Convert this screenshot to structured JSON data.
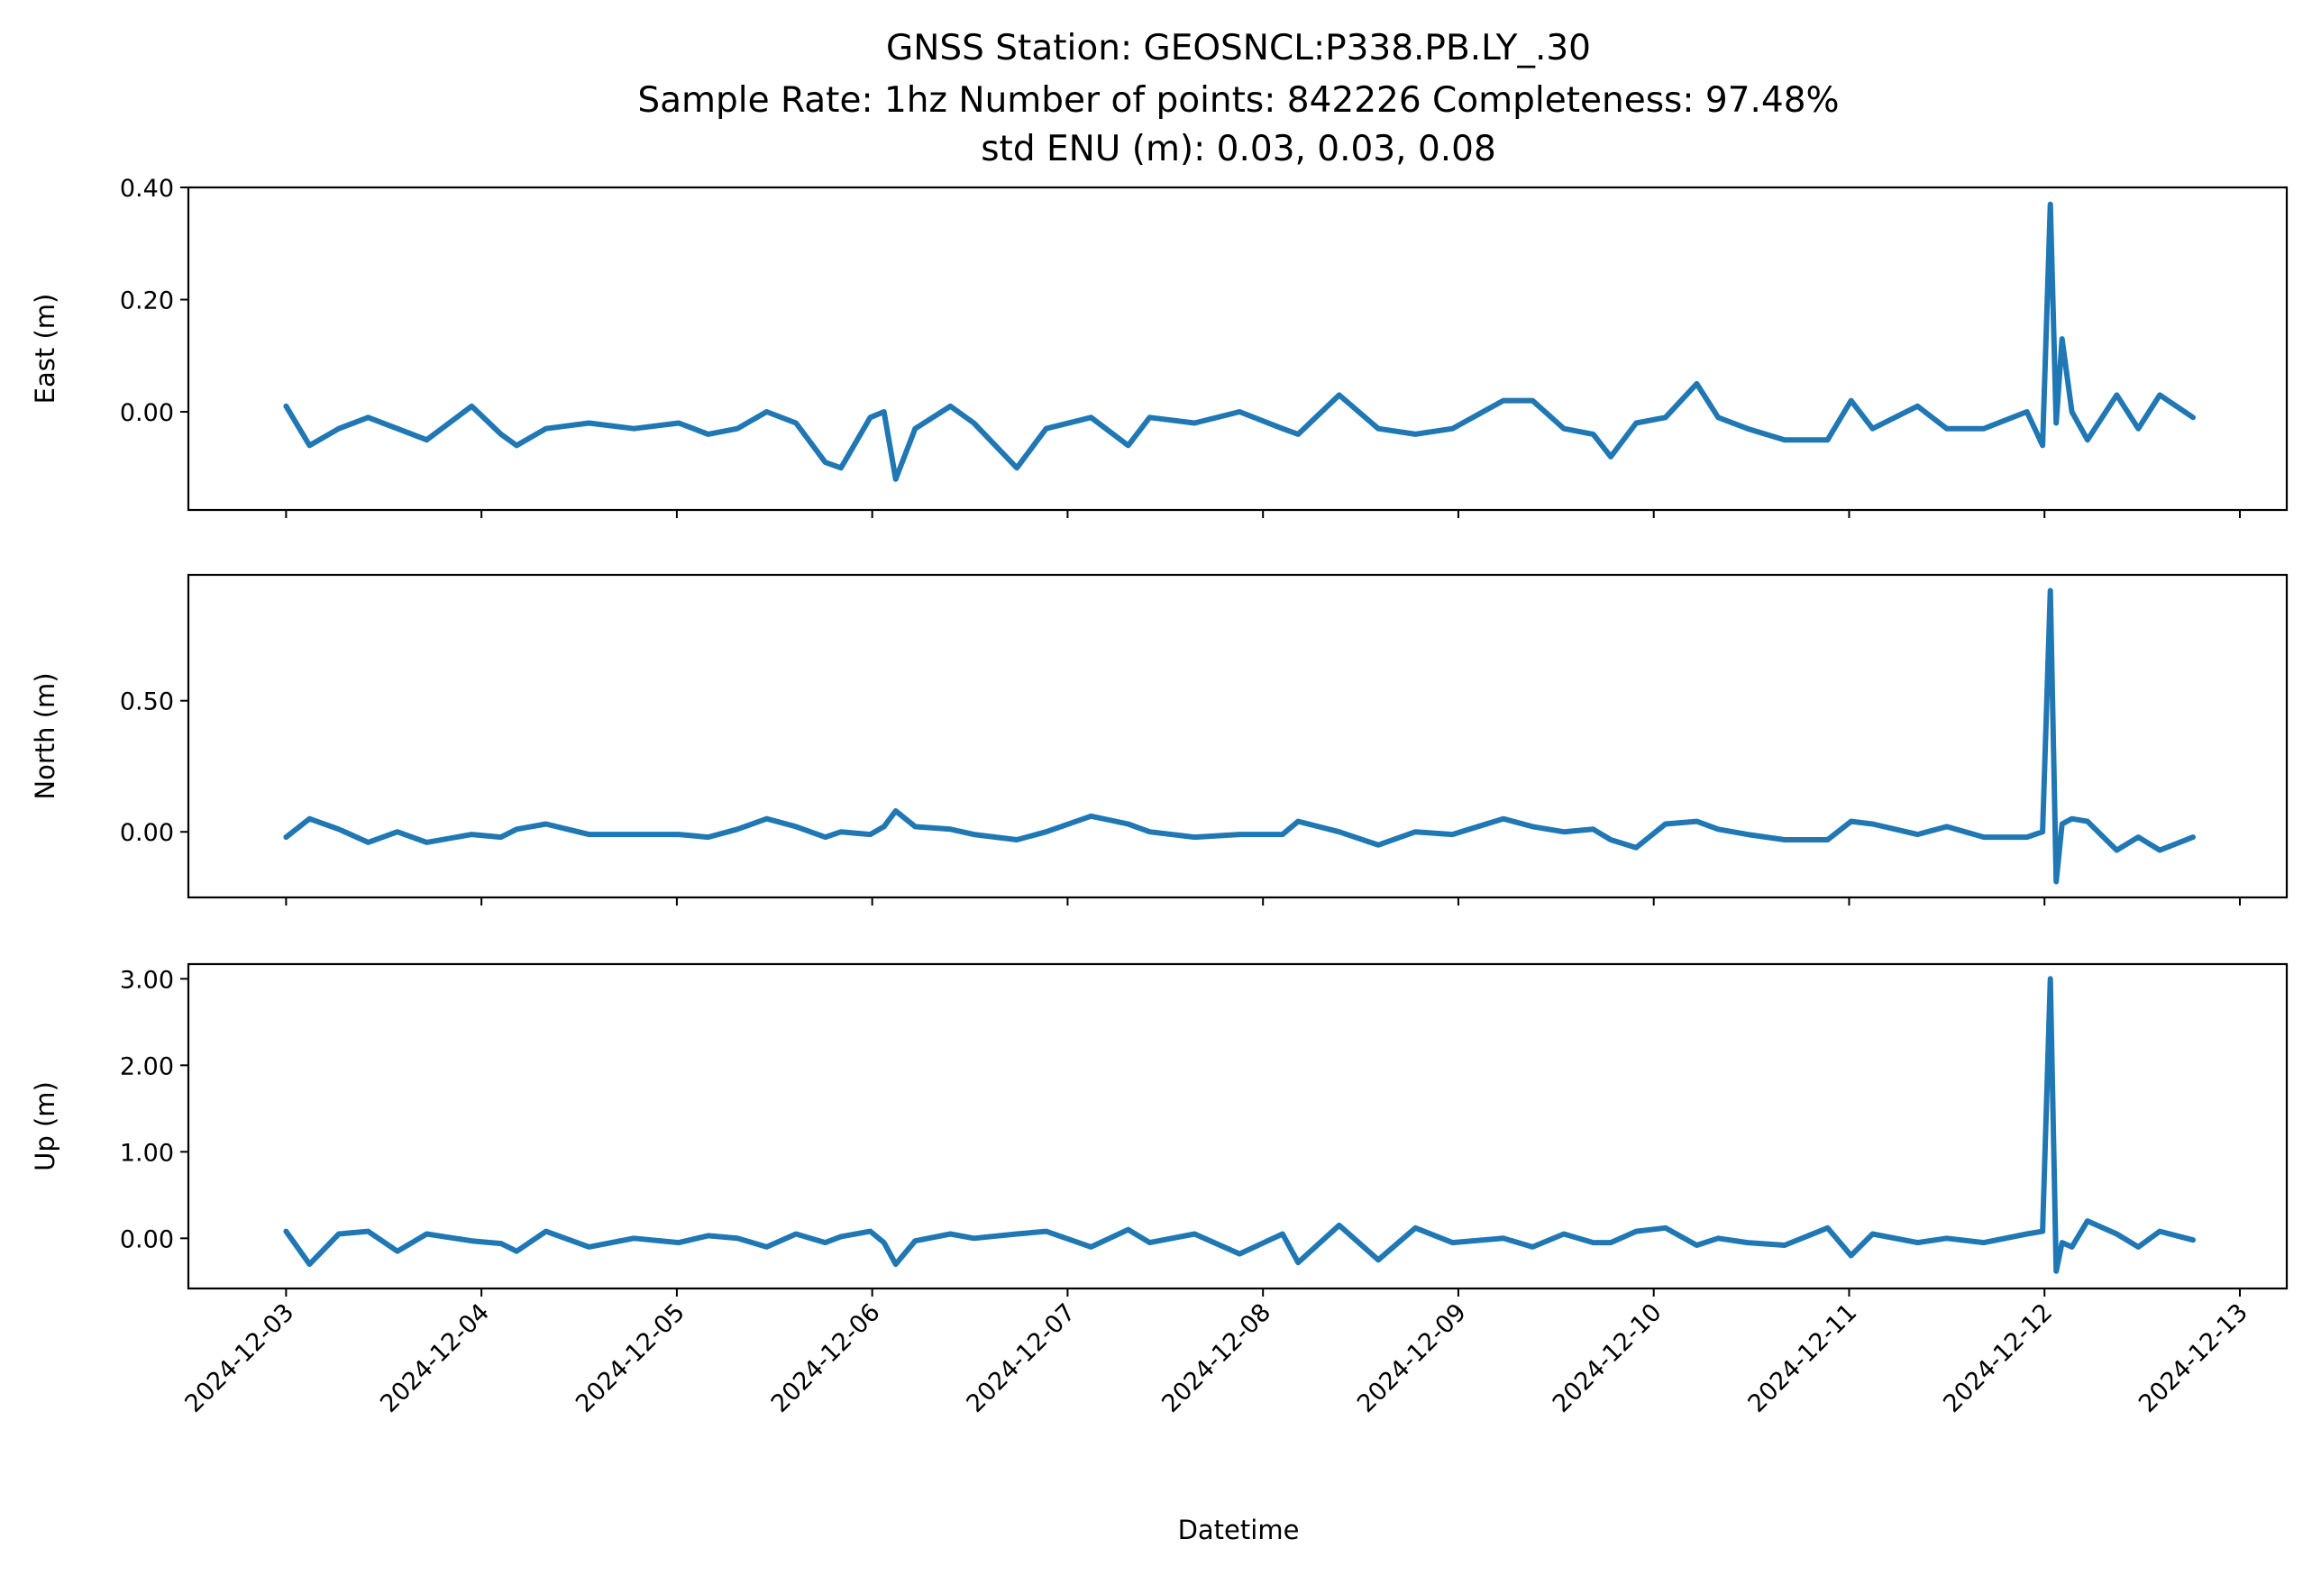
{
  "title": {
    "line1": "GNSS Station: GEOSNCL:P338.PB.LY_.30",
    "line2": "Sample Rate: 1hz   Number of points: 842226    Completeness:  97.48%",
    "line3": "std ENU (m):  0.03, 0.03, 0.08"
  },
  "chart_data": {
    "type": "line",
    "title": "GNSS Station: GEOSNCL:P338.PB.LY_.30",
    "xlabel": "Datetime",
    "x_units": "days since 2024-12-03 00:00",
    "xlim": [
      -0.5,
      10.24
    ],
    "xtick_labels": [
      "2024-12-03",
      "2024-12-04",
      "2024-12-05",
      "2024-12-06",
      "2024-12-07",
      "2024-12-08",
      "2024-12-09",
      "2024-12-10",
      "2024-12-11",
      "2024-12-12",
      "2024-12-13"
    ],
    "x": [
      0,
      0.12,
      0.27,
      0.42,
      0.57,
      0.72,
      0.95,
      1.1,
      1.18,
      1.33,
      1.55,
      1.78,
      2.01,
      2.16,
      2.31,
      2.46,
      2.61,
      2.76,
      2.84,
      2.99,
      3.06,
      3.12,
      3.22,
      3.4,
      3.52,
      3.74,
      3.89,
      4.12,
      4.31,
      4.42,
      4.65,
      4.88,
      5.1,
      5.18,
      5.39,
      5.59,
      5.78,
      5.97,
      6.23,
      6.38,
      6.54,
      6.69,
      6.78,
      6.91,
      7.06,
      7.22,
      7.33,
      7.48,
      7.67,
      7.89,
      8.01,
      8.12,
      8.35,
      8.5,
      8.69,
      8.91,
      8.99,
      9.03,
      9.06,
      9.09,
      9.14,
      9.22,
      9.37,
      9.48,
      9.59,
      9.76
    ],
    "color": "#1f77b4",
    "grid": false,
    "subplots": [
      {
        "name": "East",
        "ylabel": "East (m)",
        "ylim": [
          -0.175,
          0.4
        ],
        "yticks": [
          0.0,
          0.2,
          0.4
        ],
        "ytick_labels": [
          "0.00",
          "0.20",
          "0.40"
        ],
        "values": [
          0.01,
          -0.06,
          -0.03,
          -0.01,
          -0.03,
          -0.05,
          0.01,
          -0.04,
          -0.06,
          -0.03,
          -0.02,
          -0.03,
          -0.02,
          -0.04,
          -0.03,
          0.0,
          -0.02,
          -0.09,
          -0.1,
          -0.01,
          0.0,
          -0.12,
          -0.03,
          0.01,
          -0.02,
          -0.1,
          -0.03,
          -0.01,
          -0.06,
          -0.01,
          -0.02,
          0.0,
          -0.03,
          -0.04,
          0.03,
          -0.03,
          -0.04,
          -0.03,
          0.02,
          0.02,
          -0.03,
          -0.04,
          -0.08,
          -0.02,
          -0.01,
          0.05,
          -0.01,
          -0.03,
          -0.05,
          -0.05,
          0.02,
          -0.03,
          0.01,
          -0.03,
          -0.03,
          0.0,
          -0.06,
          0.37,
          -0.02,
          0.13,
          0.0,
          -0.05,
          0.03,
          -0.03,
          0.03,
          -0.01
        ]
      },
      {
        "name": "North",
        "ylabel": "North (m)",
        "ylim": [
          -0.25,
          0.98
        ],
        "yticks": [
          0.0,
          0.5
        ],
        "ytick_labels": [
          "0.00",
          "0.50"
        ],
        "values": [
          -0.02,
          0.05,
          0.01,
          -0.04,
          0.0,
          -0.04,
          -0.01,
          -0.02,
          0.01,
          0.03,
          -0.01,
          -0.01,
          -0.01,
          -0.02,
          0.01,
          0.05,
          0.02,
          -0.02,
          0.0,
          -0.01,
          0.02,
          0.08,
          0.02,
          0.01,
          -0.01,
          -0.03,
          0.0,
          0.06,
          0.03,
          0.0,
          -0.02,
          -0.01,
          -0.01,
          0.04,
          0.0,
          -0.05,
          0.0,
          -0.01,
          0.05,
          0.02,
          0.0,
          0.01,
          -0.03,
          -0.06,
          0.03,
          0.04,
          0.01,
          -0.01,
          -0.03,
          -0.03,
          0.04,
          0.03,
          -0.01,
          0.02,
          -0.02,
          -0.02,
          0.0,
          0.92,
          -0.19,
          0.03,
          0.05,
          0.04,
          -0.07,
          -0.02,
          -0.07,
          -0.02
        ]
      },
      {
        "name": "Up",
        "ylabel": "Up (m)",
        "ylim": [
          -0.58,
          3.17
        ],
        "yticks": [
          0.0,
          1.0,
          2.0,
          3.0
        ],
        "ytick_labels": [
          "0.00",
          "1.00",
          "2.00",
          "3.00"
        ],
        "values": [
          0.08,
          -0.3,
          0.05,
          0.08,
          -0.15,
          0.05,
          -0.03,
          -0.06,
          -0.15,
          0.08,
          -0.1,
          0.0,
          -0.05,
          0.03,
          0.0,
          -0.1,
          0.05,
          -0.05,
          0.02,
          0.08,
          -0.05,
          -0.3,
          -0.03,
          0.05,
          0.0,
          0.05,
          0.08,
          -0.1,
          0.1,
          -0.05,
          0.05,
          -0.18,
          0.05,
          -0.28,
          0.15,
          -0.25,
          0.12,
          -0.05,
          0.0,
          -0.1,
          0.05,
          -0.05,
          -0.05,
          0.08,
          0.12,
          -0.08,
          0.0,
          -0.05,
          -0.08,
          0.12,
          -0.2,
          0.05,
          -0.05,
          0.0,
          -0.05,
          0.05,
          0.08,
          3.0,
          -0.38,
          -0.05,
          -0.1,
          0.2,
          0.05,
          -0.1,
          0.08,
          -0.02
        ]
      }
    ]
  }
}
